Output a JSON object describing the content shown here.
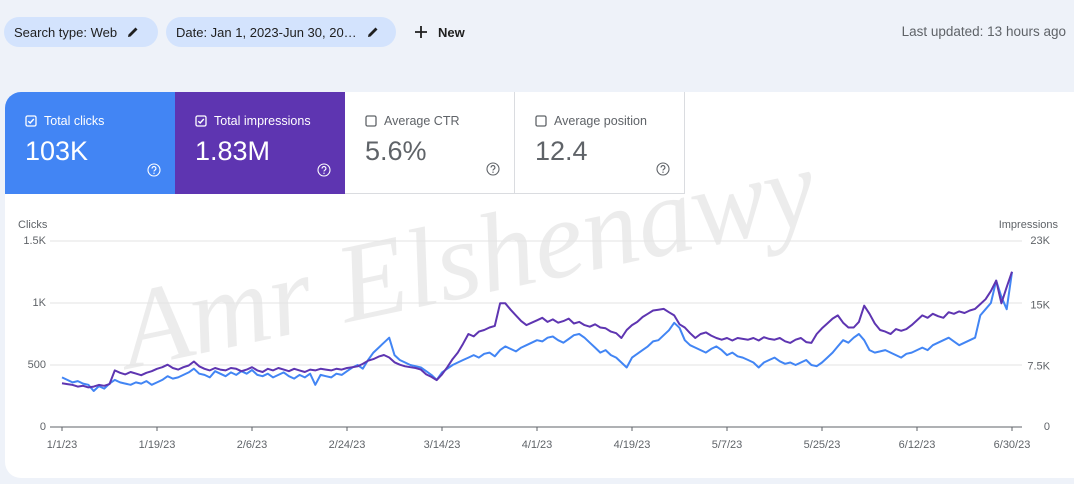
{
  "filters": [
    {
      "label": "Search type: Web"
    },
    {
      "label": "Date: Jan 1, 2023-Jun 30, 20…"
    }
  ],
  "new_button": "New",
  "last_updated": "Last updated: 13 hours ago",
  "metrics": [
    {
      "label": "Total clicks",
      "value": "103K",
      "checked": true,
      "color": "#4285f4"
    },
    {
      "label": "Total impressions",
      "value": "1.83M",
      "checked": true,
      "color": "#5e35b1"
    },
    {
      "label": "Average CTR",
      "value": "5.6%",
      "checked": false,
      "color": "#ffffff"
    },
    {
      "label": "Average position",
      "value": "12.4",
      "checked": false,
      "color": "#ffffff"
    }
  ],
  "watermark": "Amr Elshenawy",
  "chart_data": {
    "type": "line",
    "categories": [
      "1/1/23",
      null,
      null,
      null,
      null,
      null,
      null,
      null,
      null,
      null,
      null,
      null,
      null,
      null,
      null,
      null,
      null,
      null,
      "1/19/23",
      null,
      null,
      null,
      null,
      null,
      null,
      null,
      null,
      null,
      null,
      null,
      null,
      null,
      null,
      null,
      null,
      null,
      "2/6/23",
      null,
      null,
      null,
      null,
      null,
      null,
      null,
      null,
      null,
      null,
      null,
      null,
      null,
      null,
      null,
      null,
      null,
      "2/24/23",
      null,
      null,
      null,
      null,
      null,
      null,
      null,
      null,
      null,
      null,
      null,
      null,
      null,
      null,
      null,
      null,
      null,
      "3/14/23",
      null,
      null,
      null,
      null,
      null,
      null,
      null,
      null,
      null,
      null,
      null,
      null,
      null,
      null,
      null,
      null,
      null,
      "4/1/23",
      null,
      null,
      null,
      null,
      null,
      null,
      null,
      null,
      null,
      null,
      null,
      null,
      null,
      null,
      null,
      null,
      null,
      "4/19/23",
      null,
      null,
      null,
      null,
      null,
      null,
      null,
      null,
      null,
      null,
      null,
      null,
      null,
      null,
      null,
      null,
      null,
      "5/7/23",
      null,
      null,
      null,
      null,
      null,
      null,
      null,
      null,
      null,
      null,
      null,
      null,
      null,
      null,
      null,
      null,
      null,
      "5/25/23",
      null,
      null,
      null,
      null,
      null,
      null,
      null,
      null,
      null,
      null,
      null,
      null,
      null,
      null,
      null,
      null,
      null,
      "6/12/23",
      null,
      null,
      null,
      null,
      null,
      null,
      null,
      null,
      null,
      null,
      null,
      null,
      null,
      null,
      null,
      null,
      null,
      "6/30/23"
    ],
    "series": [
      {
        "name": "Clicks",
        "color": "#4285f4",
        "values": [
          400,
          380,
          360,
          370,
          350,
          340,
          290,
          330,
          310,
          350,
          380,
          360,
          350,
          340,
          360,
          350,
          370,
          340,
          360,
          380,
          410,
          390,
          400,
          420,
          440,
          470,
          430,
          420,
          400,
          450,
          430,
          410,
          440,
          420,
          450,
          430,
          460,
          420,
          410,
          430,
          400,
          420,
          440,
          410,
          390,
          420,
          400,
          430,
          340,
          420,
          410,
          400,
          430,
          420,
          450,
          480,
          500,
          470,
          540,
          600,
          640,
          680,
          720,
          580,
          540,
          520,
          500,
          490,
          480,
          450,
          420,
          380,
          440,
          470,
          500,
          520,
          540,
          560,
          580,
          560,
          590,
          600,
          570,
          620,
          650,
          630,
          610,
          640,
          660,
          680,
          700,
          690,
          720,
          730,
          700,
          680,
          710,
          740,
          750,
          720,
          680,
          640,
          600,
          620,
          580,
          560,
          520,
          480,
          560,
          590,
          620,
          650,
          690,
          700,
          740,
          780,
          840,
          800,
          700,
          660,
          640,
          620,
          600,
          630,
          650,
          620,
          580,
          600,
          570,
          560,
          540,
          520,
          480,
          520,
          540,
          560,
          530,
          510,
          520,
          500,
          520,
          540,
          500,
          490,
          520,
          560,
          600,
          650,
          700,
          680,
          720,
          750,
          700,
          620,
          600,
          610,
          620,
          600,
          580,
          560,
          590,
          600,
          620,
          640,
          620,
          660,
          680,
          700,
          720,
          690,
          660,
          680,
          700,
          720,
          900,
          950,
          1000,
          1180,
          1050,
          950,
          1250
        ]
      },
      {
        "name": "Impressions",
        "color": "#5e35b1",
        "axis": "y2",
        "values": [
          5400,
          5300,
          5200,
          5000,
          5100,
          4900,
          5000,
          5200,
          5100,
          5300,
          7000,
          6700,
          6500,
          6800,
          6600,
          6400,
          6700,
          6900,
          7200,
          7400,
          7700,
          7300,
          7100,
          7400,
          7600,
          8100,
          7500,
          7200,
          7000,
          7300,
          7100,
          7000,
          7300,
          7200,
          6900,
          7100,
          7400,
          7000,
          6800,
          7200,
          7000,
          7300,
          7100,
          6900,
          7200,
          7000,
          6800,
          7100,
          7000,
          7200,
          7100,
          7000,
          7200,
          7100,
          7300,
          7400,
          7500,
          7800,
          8200,
          8400,
          8700,
          8900,
          8600,
          8000,
          7700,
          7500,
          7400,
          7300,
          7100,
          6500,
          6200,
          5800,
          6500,
          7400,
          8400,
          9200,
          10300,
          11500,
          11200,
          11800,
          12000,
          12300,
          12500,
          15300,
          15300,
          14500,
          13800,
          13100,
          12600,
          12900,
          13200,
          13500,
          13000,
          13300,
          12900,
          13100,
          13400,
          12800,
          13000,
          12600,
          12400,
          12700,
          12300,
          12200,
          11800,
          11600,
          11000,
          12000,
          12600,
          13000,
          13600,
          14000,
          14400,
          14500,
          14600,
          14200,
          13800,
          12700,
          12300,
          11600,
          11000,
          11500,
          11700,
          11300,
          11000,
          10800,
          11000,
          10700,
          11000,
          10900,
          10800,
          11000,
          10700,
          11100,
          10900,
          10800,
          11000,
          10600,
          10400,
          10800,
          11000,
          10500,
          10400,
          11500,
          12200,
          12800,
          13400,
          13800,
          12900,
          12300,
          12300,
          13000,
          15000,
          14000,
          12800,
          12000,
          11800,
          11500,
          12100,
          11900,
          12100,
          12600,
          13200,
          13800,
          13500,
          14000,
          13700,
          13500,
          14200,
          14000,
          14300,
          14100,
          14400,
          14600,
          15200,
          15800,
          16800,
          18100,
          15300,
          17300,
          19200
        ]
      }
    ],
    "ylim": [
      0,
      1500
    ],
    "yticks": [
      0,
      500,
      {
        "value": 1000,
        "label": "1K"
      },
      {
        "value": 1500,
        "label": "1.5K"
      }
    ],
    "y2lim": [
      0,
      23000
    ],
    "y2ticks": [
      0,
      {
        "value": 7500,
        "label": "7.5K"
      },
      {
        "value": 15000,
        "label": "15K"
      },
      {
        "value": 23000,
        "label": "23K"
      }
    ],
    "grid": true
  }
}
